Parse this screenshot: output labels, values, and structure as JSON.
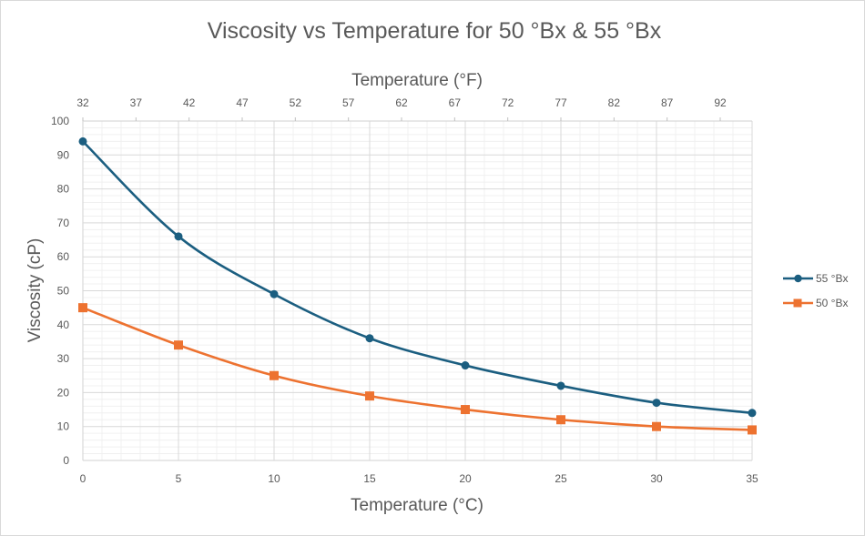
{
  "chart_data": {
    "type": "line",
    "title": "Viscosity vs Temperature for 50 °Bx & 55 °Bx",
    "xlabel": "Temperature (°C)",
    "x2label": "Temperature (°F)",
    "ylabel": "Viscosity (cP)",
    "x": [
      0,
      5,
      10,
      15,
      20,
      25,
      30,
      35
    ],
    "xlim": [
      0,
      35
    ],
    "ylim": [
      0,
      100
    ],
    "x_ticks": [
      "0",
      "5",
      "10",
      "15",
      "20",
      "25",
      "30",
      "35"
    ],
    "y_ticks": [
      "0",
      "10",
      "20",
      "30",
      "40",
      "50",
      "60",
      "70",
      "80",
      "90",
      "100"
    ],
    "x2_ticks": [
      "32",
      "37",
      "42",
      "47",
      "52",
      "57",
      "62",
      "67",
      "72",
      "77",
      "82",
      "87",
      "92"
    ],
    "x2_tick_values_f": [
      32,
      37,
      42,
      47,
      52,
      57,
      62,
      67,
      72,
      77,
      82,
      87,
      92
    ],
    "grid": true,
    "minor_grid": true,
    "smoothed": true,
    "legend_position": "right",
    "series": [
      {
        "name": "55 °Bx",
        "color": "#1b5e80",
        "marker": "circle",
        "values": [
          94,
          66,
          49,
          36,
          28,
          22,
          17,
          14
        ]
      },
      {
        "name": "50 °Bx",
        "color": "#ed7230",
        "marker": "square",
        "values": [
          45,
          34,
          25,
          19,
          15,
          12,
          10,
          9
        ]
      }
    ]
  }
}
